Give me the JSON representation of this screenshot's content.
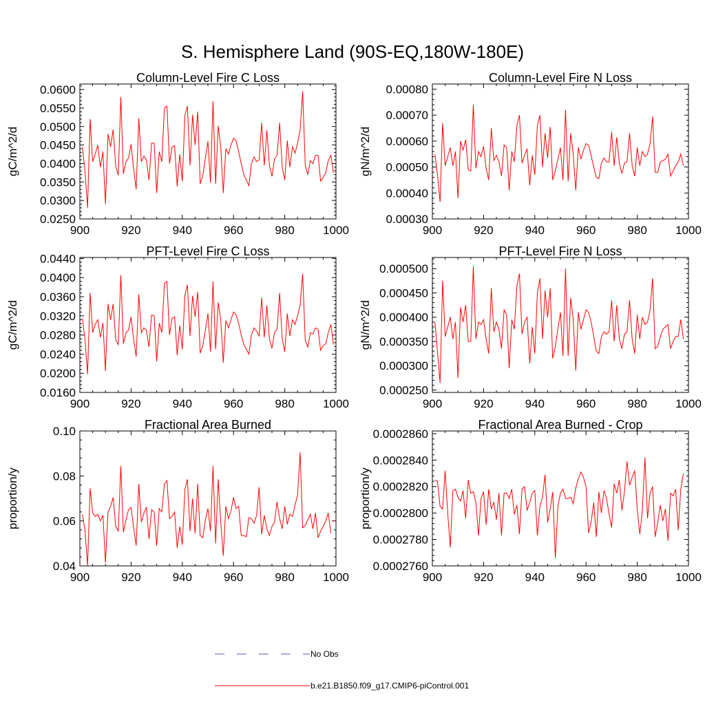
{
  "figure_title": "S. Hemisphere Land (90S-EQ,180W-180E)",
  "colors": {
    "series": "#ff0000",
    "obs": "#5a5ab4",
    "axis": "#000000"
  },
  "legend": [
    {
      "label": "No Obs",
      "style": "dashed",
      "color": "#5a5ab4"
    },
    {
      "label": "b.e21.B1850.f09_g17.CMIP6-piControl.001",
      "style": "solid",
      "color": "#ff0000"
    }
  ],
  "chart_data": [
    {
      "type": "line",
      "title": "Column-Level Fire C Loss",
      "ylabel": "gC/m^2/d",
      "xlim": [
        900,
        1000
      ],
      "ylim": [
        0.025,
        0.0615
      ],
      "xticks": [
        900,
        920,
        940,
        960,
        980,
        1000
      ],
      "xtick_labels": [
        "900",
        "920",
        "940",
        "960",
        "980",
        "1000"
      ],
      "yticks": [
        0.025,
        0.03,
        0.035,
        0.04,
        0.045,
        0.05,
        0.055,
        0.06
      ],
      "ytick_labels": [
        "0.0250",
        "0.0300",
        "0.0350",
        "0.0400",
        "0.0450",
        "0.0500",
        "0.0550",
        "0.0600"
      ],
      "series": [
        {
          "name": "b.e21.B1850.f09_g17.CMIP6-piControl.001",
          "x_start": 901,
          "values": [
            0.0445,
            0.038,
            0.028,
            0.052,
            0.0405,
            0.0425,
            0.045,
            0.039,
            0.0432,
            0.029,
            0.048,
            0.0445,
            0.0492,
            0.0392,
            0.0368,
            0.058,
            0.0372,
            0.0405,
            0.0415,
            0.0452,
            0.0385,
            0.033,
            0.0522,
            0.0405,
            0.042,
            0.041,
            0.0355,
            0.0455,
            0.0455,
            0.032,
            0.0432,
            0.0405,
            0.055,
            0.0555,
            0.04,
            0.0445,
            0.0448,
            0.0338,
            0.0425,
            0.0352,
            0.053,
            0.0555,
            0.0395,
            0.0532,
            0.045,
            0.054,
            0.0345,
            0.0368,
            0.0415,
            0.046,
            0.0348,
            0.0568,
            0.0345,
            0.0502,
            0.0445,
            0.032,
            0.044,
            0.0425,
            0.045,
            0.0468,
            0.0462,
            0.0432,
            0.04,
            0.037,
            0.0355,
            0.034,
            0.04,
            0.0418,
            0.0405,
            0.041,
            0.051,
            0.0395,
            0.049,
            0.0395,
            0.0365,
            0.0412,
            0.0422,
            0.051,
            0.039,
            0.0355,
            0.0462,
            0.039,
            0.0445,
            0.0428,
            0.0455,
            0.049,
            0.0595,
            0.0395,
            0.037,
            0.0408,
            0.04,
            0.0422,
            0.0422,
            0.0352,
            0.0362,
            0.0375,
            0.0408,
            0.0422,
            0.0375
          ]
        }
      ]
    },
    {
      "type": "line",
      "title": "Column-Level Fire N Loss",
      "ylabel": "gN/m^2/d",
      "xlim": [
        900,
        1000
      ],
      "ylim": [
        0.0003,
        0.00082
      ],
      "xticks": [
        900,
        920,
        940,
        960,
        980,
        1000
      ],
      "xtick_labels": [
        "900",
        "920",
        "940",
        "960",
        "980",
        "1000"
      ],
      "yticks": [
        0.0003,
        0.0004,
        0.0005,
        0.0006,
        0.0007,
        0.0008
      ],
      "ytick_labels": [
        "0.00030",
        "0.00040",
        "0.00050",
        "0.00060",
        "0.00070",
        "0.00080"
      ],
      "series": [
        {
          "name": "b.e21.B1850.f09_g17.CMIP6-piControl.001",
          "x_start": 901,
          "values": [
            0.00055,
            0.00047,
            0.000365,
            0.00067,
            0.000505,
            0.00054,
            0.000575,
            0.000505,
            0.00056,
            0.00038,
            0.0006,
            0.000565,
            0.000605,
            0.00049,
            0.000485,
            0.00074,
            0.000495,
            0.00056,
            0.00054,
            0.00058,
            0.000495,
            0.00045,
            0.00065,
            0.000525,
            0.000545,
            0.00052,
            0.000465,
            0.000585,
            0.000575,
            0.00041,
            0.00056,
            0.00052,
            0.00066,
            0.0007,
            0.000515,
            0.000545,
            0.00057,
            0.00043,
            0.000545,
            0.00047,
            0.00066,
            0.0007,
            0.0005,
            0.00063,
            0.000535,
            0.000655,
            0.00045,
            0.000485,
            0.00053,
            0.000575,
            0.00045,
            0.00072,
            0.000445,
            0.00063,
            0.00055,
            0.00041,
            0.000575,
            0.00053,
            0.000565,
            0.00059,
            0.000585,
            0.000545,
            0.0005,
            0.00046,
            0.000455,
            0.000515,
            0.000535,
            0.00052,
            0.00052,
            0.000635,
            0.000505,
            0.000615,
            0.000515,
            0.000475,
            0.000515,
            0.00052,
            0.00063,
            0.000505,
            0.000465,
            0.000575,
            0.000505,
            0.00056,
            0.00054,
            0.00055,
            0.00059,
            0.000695,
            0.00048,
            0.00048,
            0.00052,
            0.000525,
            0.00053,
            0.00055,
            0.000465,
            0.000485,
            0.000505,
            0.00052,
            0.00055,
            0.000505
          ]
        }
      ]
    },
    {
      "type": "line",
      "title": "PFT-Level Fire C Loss",
      "ylabel": "gC/m^2/d",
      "xlim": [
        900,
        1000
      ],
      "ylim": [
        0.016,
        0.0442
      ],
      "xticks": [
        900,
        920,
        940,
        960,
        980,
        1000
      ],
      "xtick_labels": [
        "900",
        "920",
        "940",
        "960",
        "980",
        "1000"
      ],
      "yticks": [
        0.016,
        0.02,
        0.024,
        0.028,
        0.032,
        0.036,
        0.04,
        0.044
      ],
      "ytick_labels": [
        "0.0160",
        "0.0200",
        "0.0240",
        "0.0280",
        "0.0320",
        "0.0360",
        "0.0400",
        "0.0440"
      ],
      "series": [
        {
          "name": "b.e21.B1850.f09_g17.CMIP6-piControl.001",
          "x_start": 901,
          "values": [
            0.0315,
            0.0272,
            0.0198,
            0.0368,
            0.0285,
            0.0302,
            0.0312,
            0.0275,
            0.0305,
            0.0205,
            0.0345,
            0.0312,
            0.0345,
            0.027,
            0.026,
            0.0405,
            0.0262,
            0.0285,
            0.029,
            0.0318,
            0.027,
            0.0235,
            0.0365,
            0.0285,
            0.0295,
            0.029,
            0.0255,
            0.0322,
            0.032,
            0.0225,
            0.0305,
            0.0285,
            0.0388,
            0.0392,
            0.028,
            0.0315,
            0.0318,
            0.0238,
            0.03,
            0.025,
            0.0362,
            0.0385,
            0.0278,
            0.0362,
            0.0318,
            0.037,
            0.0242,
            0.0258,
            0.029,
            0.0325,
            0.0245,
            0.0392,
            0.025,
            0.0348,
            0.0312,
            0.0222,
            0.031,
            0.0295,
            0.0312,
            0.0328,
            0.0322,
            0.0305,
            0.028,
            0.026,
            0.025,
            0.024,
            0.028,
            0.0295,
            0.0288,
            0.0278,
            0.0358,
            0.0275,
            0.0342,
            0.0272,
            0.0252,
            0.0285,
            0.0292,
            0.0368,
            0.0272,
            0.0245,
            0.0325,
            0.0278,
            0.0312,
            0.0302,
            0.032,
            0.0342,
            0.0408,
            0.0268,
            0.0255,
            0.0285,
            0.0282,
            0.0295,
            0.0292,
            0.0248,
            0.0258,
            0.0262,
            0.0285,
            0.0302,
            0.026
          ]
        }
      ]
    },
    {
      "type": "line",
      "title": "PFT-Level Fire N Loss",
      "ylabel": "gN/m^2/d",
      "xlim": [
        900,
        1000
      ],
      "ylim": [
        0.000245,
        0.000523
      ],
      "xticks": [
        900,
        920,
        940,
        960,
        980,
        1000
      ],
      "xtick_labels": [
        "900",
        "920",
        "940",
        "960",
        "980",
        "1000"
      ],
      "yticks": [
        0.00025,
        0.0003,
        0.00035,
        0.0004,
        0.00045,
        0.0005
      ],
      "ytick_labels": [
        "0.000250",
        "0.000300",
        "0.000350",
        "0.000400",
        "0.000450",
        "0.000500"
      ],
      "series": [
        {
          "name": "b.e21.B1850.f09_g17.CMIP6-piControl.001",
          "x_start": 901,
          "values": [
            0.00039,
            0.00033,
            0.000265,
            0.000475,
            0.00036,
            0.00038,
            0.0004,
            0.000355,
            0.00039,
            0.000275,
            0.00042,
            0.00039,
            0.000425,
            0.00035,
            0.00035,
            0.000505,
            0.000355,
            0.00039,
            0.000385,
            0.000395,
            0.000355,
            0.000325,
            0.00046,
            0.00037,
            0.00039,
            0.000375,
            0.000335,
            0.000415,
            0.000405,
            0.000295,
            0.000395,
            0.000375,
            0.000465,
            0.00049,
            0.000365,
            0.00039,
            0.0004,
            0.000305,
            0.00038,
            0.000325,
            0.00045,
            0.00048,
            0.000355,
            0.000455,
            0.0004,
            0.00046,
            0.000315,
            0.00034,
            0.000375,
            0.00041,
            0.00032,
            0.0005,
            0.00032,
            0.00044,
            0.000395,
            0.00029,
            0.00041,
            0.000375,
            0.000395,
            0.000415,
            0.00041,
            0.00039,
            0.00036,
            0.00033,
            0.000325,
            0.00036,
            0.00037,
            0.000365,
            0.00037,
            0.000435,
            0.00035,
            0.000425,
            0.000355,
            0.000335,
            0.000365,
            0.00037,
            0.000435,
            0.000355,
            0.000325,
            0.000405,
            0.000355,
            0.0004,
            0.000385,
            0.00039,
            0.000415,
            0.00048,
            0.000335,
            0.00034,
            0.00036,
            0.000375,
            0.00038,
            0.000385,
            0.000335,
            0.00035,
            0.00036,
            0.00036,
            0.000395,
            0.000355
          ]
        }
      ]
    },
    {
      "type": "line",
      "title": "Fractional Area Burned",
      "ylabel": "proportion/y",
      "xlim": [
        900,
        1000
      ],
      "ylim": [
        0.04,
        0.1
      ],
      "xticks": [
        900,
        920,
        940,
        960,
        980,
        1000
      ],
      "xtick_labels": [
        "900",
        "920",
        "940",
        "960",
        "980",
        "1000"
      ],
      "yticks": [
        0.04,
        0.06,
        0.08,
        0.1
      ],
      "ytick_labels": [
        "0.04",
        "0.06",
        "0.08",
        "0.10"
      ],
      "series": [
        {
          "name": "b.e21.B1850.f09_g17.CMIP6-piControl.001",
          "x_start": 901,
          "values": [
            0.063,
            0.056,
            0.04,
            0.0745,
            0.0635,
            0.062,
            0.063,
            0.06,
            0.0625,
            0.0415,
            0.064,
            0.0665,
            0.0705,
            0.0575,
            0.0555,
            0.0845,
            0.055,
            0.0605,
            0.065,
            0.066,
            0.057,
            0.049,
            0.0765,
            0.0595,
            0.0635,
            0.066,
            0.052,
            0.065,
            0.064,
            0.049,
            0.0655,
            0.064,
            0.0765,
            0.078,
            0.061,
            0.062,
            0.064,
            0.048,
            0.0575,
            0.0495,
            0.074,
            0.0785,
            0.0555,
            0.07,
            0.0545,
            0.0765,
            0.0535,
            0.0525,
            0.0605,
            0.0655,
            0.0555,
            0.0845,
            0.05,
            0.0785,
            0.0595,
            0.0445,
            0.0665,
            0.061,
            0.0645,
            0.0705,
            0.0655,
            0.0665,
            0.0535,
            0.0535,
            0.053,
            0.0615,
            0.061,
            0.059,
            0.0625,
            0.075,
            0.054,
            0.0625,
            0.0565,
            0.0535,
            0.0575,
            0.0595,
            0.0685,
            0.061,
            0.0565,
            0.0665,
            0.0585,
            0.063,
            0.062,
            0.067,
            0.0715,
            0.0905,
            0.057,
            0.058,
            0.0605,
            0.063,
            0.0565,
            0.0635,
            0.0525,
            0.0555,
            0.0575,
            0.06,
            0.0635,
            0.0545
          ]
        }
      ]
    },
    {
      "type": "line",
      "title": "Fractional Area Burned - Crop",
      "ylabel": "proportion/y",
      "xlim": [
        900,
        1000
      ],
      "ylim": [
        0.000276,
        0.0002862
      ],
      "xticks": [
        900,
        920,
        940,
        960,
        980,
        1000
      ],
      "xtick_labels": [
        "900",
        "920",
        "940",
        "960",
        "980",
        "1000"
      ],
      "yticks": [
        0.000276,
        0.000278,
        0.00028,
        0.000282,
        0.000284,
        0.000286
      ],
      "ytick_labels": [
        "0.0002760",
        "0.0002780",
        "0.0002800",
        "0.0002820",
        "0.0002840",
        "0.0002860"
      ],
      "series": [
        {
          "name": "b.e21.B1850.f09_g17.CMIP6-piControl.001",
          "x_start": 901,
          "values": [
            0.0002825,
            0.0002824,
            0.0002805,
            0.0002803,
            0.0002832,
            0.00028,
            0.0002774,
            0.0002817,
            0.0002818,
            0.0002812,
            0.0002809,
            0.0002817,
            0.0002796,
            0.0002825,
            0.0002815,
            0.0002816,
            0.0002808,
            0.0002783,
            0.0002811,
            0.0002816,
            0.0002791,
            0.0002818,
            0.0002803,
            0.0002808,
            0.0002795,
            0.0002815,
            0.0002783,
            0.0002815,
            0.0002815,
            0.0002811,
            0.0002818,
            0.0002799,
            0.0002806,
            0.0002784,
            0.0002818,
            0.000282,
            0.0002802,
            0.0002808,
            0.0002815,
            0.0002817,
            0.0002783,
            0.0002805,
            0.0002812,
            0.0002829,
            0.0002793,
            0.0002803,
            0.0002816,
            0.0002766,
            0.0002805,
            0.0002815,
            0.0002818,
            0.0002811,
            0.0002811,
            0.0002812,
            0.0002807,
            0.0002819,
            0.0002826,
            0.0002831,
            0.0002827,
            0.000282,
            0.0002785,
            0.0002793,
            0.0002808,
            0.0002782,
            0.0002816,
            0.00028,
            0.0002817,
            0.0002811,
            0.0002799,
            0.0002789,
            0.0002822,
            0.0002815,
            0.0002825,
            0.0002802,
            0.0002816,
            0.0002839,
            0.0002821,
            0.0002827,
            0.0002832,
            0.0002803,
            0.0002784,
            0.0002802,
            0.0002842,
            0.0002796,
            0.0002815,
            0.000282,
            0.0002782,
            0.0002793,
            0.0002806,
            0.0002794,
            0.0002803,
            0.0002779,
            0.0002815,
            0.0002813,
            0.0002818,
            0.0002787,
            0.0002818,
            0.000283
          ]
        }
      ]
    }
  ]
}
